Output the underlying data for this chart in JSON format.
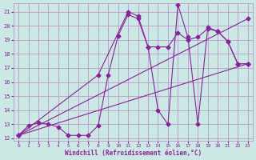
{
  "xlabel": "Windchill (Refroidissement éolien,°C)",
  "bg_color": "#cce8e4",
  "grid_color": "#bb99cc",
  "line_color": "#882299",
  "xlim": [
    -0.5,
    23.5
  ],
  "ylim": [
    11.8,
    21.6
  ],
  "xticks": [
    0,
    1,
    2,
    3,
    4,
    5,
    6,
    7,
    8,
    9,
    10,
    11,
    12,
    13,
    14,
    15,
    16,
    17,
    18,
    19,
    20,
    21,
    22,
    23
  ],
  "yticks": [
    12,
    13,
    14,
    15,
    16,
    17,
    18,
    19,
    20,
    21
  ],
  "series_zigzag_x": [
    0,
    1,
    2,
    3,
    4,
    5,
    6,
    7,
    8,
    9,
    10,
    11,
    12,
    13,
    14,
    15,
    16,
    17,
    18,
    19,
    20,
    21,
    22,
    23
  ],
  "series_zigzag_y": [
    12.2,
    12.9,
    13.1,
    13.0,
    12.8,
    12.2,
    12.2,
    12.2,
    12.9,
    16.5,
    19.3,
    20.8,
    20.5,
    18.5,
    18.5,
    18.5,
    19.5,
    19.0,
    19.2,
    19.8,
    19.6,
    18.9,
    17.3,
    17.3
  ],
  "series_upper_x": [
    0,
    8,
    11,
    12,
    13,
    14,
    15,
    16,
    17,
    18,
    19,
    20,
    21,
    22,
    23
  ],
  "series_upper_y": [
    12.2,
    16.5,
    21.0,
    20.7,
    18.5,
    14.0,
    13.0,
    21.5,
    19.2,
    13.0,
    19.9,
    19.6,
    18.9,
    17.3,
    17.3
  ],
  "series_line1_x": [
    0,
    23
  ],
  "series_line1_y": [
    12.2,
    17.3
  ],
  "series_line2_x": [
    0,
    23
  ],
  "series_line2_y": [
    12.2,
    20.5
  ]
}
